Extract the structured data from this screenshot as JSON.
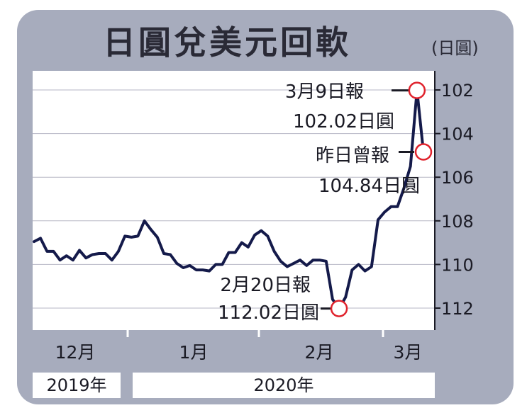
{
  "title": "日圓兌美元回軟",
  "unit_label": "(日圓)",
  "years": [
    "2019年",
    "2020年"
  ],
  "colors": {
    "line": "#141a4a",
    "marker": "#e0232d",
    "panel": "#a7acbd",
    "grid": "#b6b6c4"
  },
  "chart_data": {
    "type": "line",
    "title": "日圓兌美元回軟",
    "y_axis_inverted": true,
    "ylim": [
      112,
      102
    ],
    "yticks": [
      102,
      104,
      106,
      108,
      110,
      112
    ],
    "x_month_labels": [
      "12月",
      "1月",
      "2月",
      "3月"
    ],
    "series": [
      {
        "name": "",
        "values": [
          108.95,
          108.8,
          109.4,
          109.4,
          109.8,
          109.6,
          109.8,
          109.35,
          109.7,
          109.55,
          109.5,
          109.5,
          109.8,
          109.4,
          108.7,
          108.75,
          108.7,
          108.0,
          108.4,
          108.75,
          109.5,
          109.55,
          109.95,
          110.15,
          110.05,
          110.25,
          110.25,
          110.3,
          110.0,
          110.0,
          109.45,
          109.45,
          109.0,
          109.2,
          108.65,
          108.45,
          108.7,
          109.4,
          109.85,
          110.1,
          109.95,
          109.8,
          110.05,
          109.8,
          109.8,
          109.85,
          111.6,
          112.02,
          111.5,
          110.25,
          110.0,
          110.3,
          110.1,
          107.95,
          107.6,
          107.35,
          107.35,
          106.5,
          105.5,
          102.02,
          104.84
        ]
      }
    ],
    "annotations": [
      {
        "label_line1": "3月9日報",
        "label_line2": "102.02日圓",
        "index": 59,
        "value": 102.02
      },
      {
        "label_line1": "昨日曾報",
        "label_line2": "104.84日圓",
        "index": 60,
        "value": 104.84
      },
      {
        "label_line1": "2月20日報",
        "label_line2": "112.02日圓",
        "index": 47,
        "value": 112.02
      }
    ],
    "grid": true
  }
}
